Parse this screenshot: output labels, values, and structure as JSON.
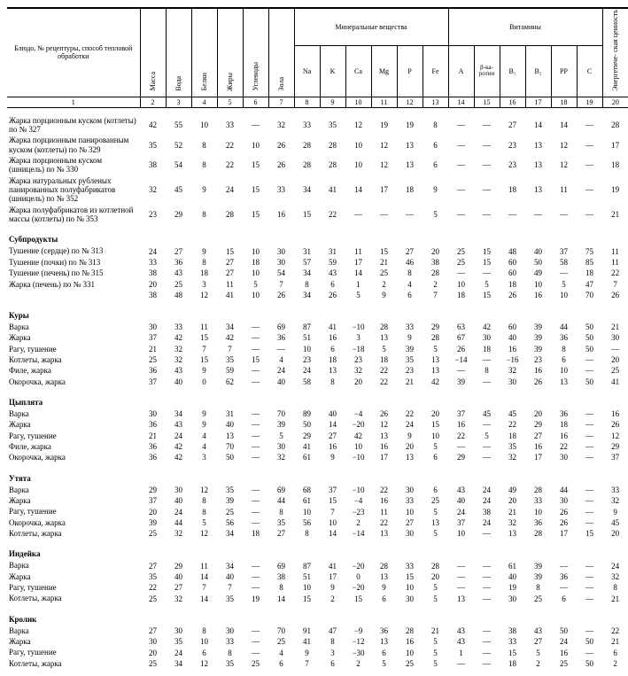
{
  "header": {
    "name_col": "Блюдо, № рецептуры,\nспособ тепловой обработки",
    "vertical": [
      "Масса",
      "Вода",
      "Белки",
      "Жиры",
      "Углеводы",
      "Зола"
    ],
    "groups": {
      "minerals": "Минеральные вещества",
      "vitamins": "Витамины",
      "energy": "Энергетиче-\nская ценность"
    },
    "mineral_cols": [
      "Na",
      "K",
      "Ca",
      "Mg",
      "P",
      "Fe"
    ],
    "vitamin_cols": [
      "A",
      "β-ка-\nротин",
      "B₁",
      "B₂",
      "PP",
      "C"
    ],
    "colnums": [
      "1",
      "2",
      "3",
      "4",
      "5",
      "6",
      "7",
      "8",
      "9",
      "10",
      "11",
      "12",
      "13",
      "14",
      "15",
      "16",
      "17",
      "18",
      "19",
      "20"
    ]
  },
  "top_rows": [
    {
      "name": "Жарка порционным куском (котлеты) по № 327",
      "v": [
        "42",
        "55",
        "10",
        "33",
        "—",
        "32",
        "33",
        "35",
        "12",
        "19",
        "19",
        "8",
        "—",
        "—",
        "27",
        "14",
        "14",
        "—",
        "28"
      ]
    },
    {
      "name": "Жарка порционным панированным куском (котлеты) по № 329",
      "v": [
        "35",
        "52",
        "8",
        "22",
        "10",
        "26",
        "28",
        "28",
        "10",
        "12",
        "13",
        "6",
        "—",
        "—",
        "23",
        "13",
        "12",
        "—",
        "17"
      ]
    },
    {
      "name": "Жарка порционным куском (шницель) по № 330",
      "v": [
        "38",
        "54",
        "8",
        "22",
        "15",
        "26",
        "28",
        "28",
        "10",
        "12",
        "13",
        "6",
        "—",
        "—",
        "23",
        "13",
        "12",
        "—",
        "18"
      ]
    },
    {
      "name": "Жарка натуральных рубленых панированных полуфабрикатов (шницель) по № 352",
      "v": [
        "32",
        "45",
        "9",
        "24",
        "15",
        "33",
        "34",
        "41",
        "14",
        "17",
        "18",
        "9",
        "—",
        "—",
        "18",
        "13",
        "11",
        "—",
        "19"
      ]
    },
    {
      "name": "Жарка полуфабрикатов из котлетной массы (котлеты) по № 353",
      "v": [
        "23",
        "29",
        "8",
        "28",
        "15",
        "16",
        "15",
        "22",
        "—",
        "—",
        "—",
        "5",
        "—",
        "—",
        "—",
        "—",
        "—",
        "—",
        "21"
      ]
    }
  ],
  "sections": [
    {
      "title": "Субпродукты",
      "rows": [
        {
          "name": "Тушение (сердце) по № 313",
          "v": [
            "24",
            "27",
            "9",
            "15",
            "10",
            "30",
            "31",
            "31",
            "11",
            "15",
            "27",
            "20",
            "25",
            "15",
            "48",
            "40",
            "37",
            "75",
            "11"
          ]
        },
        {
          "name": "Тушение (почки) по № 313",
          "v": [
            "33",
            "36",
            "8",
            "27",
            "18",
            "30",
            "57",
            "59",
            "17",
            "21",
            "46",
            "38",
            "25",
            "15",
            "60",
            "50",
            "58",
            "85",
            "11"
          ]
        },
        {
          "name": "Тушение (печень) по № 315",
          "v": [
            "38",
            "43",
            "18",
            "27",
            "10",
            "54",
            "34",
            "43",
            "14",
            "25",
            "8",
            "28",
            "—",
            "—",
            "60",
            "49",
            "—",
            "18",
            "22"
          ]
        },
        {
          "name": "Жарка (печень) по № 331",
          "v": [
            "20",
            "25",
            "3",
            "11",
            "5",
            "7",
            "8",
            "6",
            "1",
            "2",
            "4",
            "2",
            "10",
            "5",
            "18",
            "10",
            "5",
            "47",
            "7"
          ]
        },
        {
          "name": "",
          "v": [
            "38",
            "48",
            "12",
            "41",
            "10",
            "26",
            "34",
            "26",
            "5",
            "9",
            "6",
            "7",
            "18",
            "15",
            "26",
            "16",
            "10",
            "70",
            "26"
          ]
        }
      ]
    },
    {
      "title": "Куры",
      "rows": [
        {
          "name": "Варка",
          "v": [
            "30",
            "33",
            "11",
            "34",
            "—",
            "69",
            "87",
            "41",
            "−10",
            "28",
            "33",
            "29",
            "63",
            "42",
            "60",
            "39",
            "44",
            "50",
            "21"
          ]
        },
        {
          "name": "Жарка",
          "v": [
            "37",
            "42",
            "15",
            "42",
            "—",
            "36",
            "51",
            "16",
            "3",
            "13",
            "9",
            "28",
            "67",
            "30",
            "40",
            "39",
            "36",
            "50",
            "30"
          ]
        },
        {
          "name": "Рагу, тушение",
          "v": [
            "21",
            "32",
            "7",
            "7",
            "—",
            "—",
            "10",
            "6",
            "−18",
            "5",
            "39",
            "5",
            "26",
            "18",
            "16",
            "39",
            "8",
            "50",
            "—"
          ]
        },
        {
          "name": "Котлеты, жарка",
          "v": [
            "25",
            "32",
            "15",
            "35",
            "15",
            "4",
            "23",
            "18",
            "23",
            "18",
            "35",
            "13",
            "−14",
            "—",
            "−16",
            "23",
            "6",
            "—",
            "20"
          ]
        },
        {
          "name": "Филе, жарка",
          "v": [
            "36",
            "43",
            "9",
            "59",
            "—",
            "24",
            "24",
            "13",
            "32",
            "22",
            "23",
            "13",
            "—",
            "8",
            "32",
            "16",
            "10",
            "—",
            "25"
          ]
        },
        {
          "name": "Окорочка, жарка",
          "v": [
            "37",
            "40",
            "0",
            "62",
            "—",
            "40",
            "58",
            "8",
            "20",
            "22",
            "21",
            "42",
            "39",
            "—",
            "30",
            "26",
            "13",
            "50",
            "41"
          ]
        }
      ]
    },
    {
      "title": "Цыплята",
      "rows": [
        {
          "name": "Варка",
          "v": [
            "30",
            "34",
            "9",
            "31",
            "—",
            "70",
            "89",
            "40",
            "−4",
            "26",
            "22",
            "20",
            "37",
            "45",
            "45",
            "20",
            "36",
            "—",
            "16"
          ]
        },
        {
          "name": "Жарка",
          "v": [
            "36",
            "43",
            "9",
            "40",
            "—",
            "39",
            "50",
            "14",
            "−20",
            "12",
            "24",
            "15",
            "16",
            "—",
            "22",
            "29",
            "18",
            "—",
            "26"
          ]
        },
        {
          "name": "Рагу, тушение",
          "v": [
            "21",
            "24",
            "4",
            "13",
            "—",
            "5",
            "29",
            "27",
            "42",
            "13",
            "9",
            "10",
            "22",
            "5",
            "18",
            "27",
            "16",
            "—",
            "12"
          ]
        },
        {
          "name": "Филе, жарка",
          "v": [
            "36",
            "42",
            "4",
            "70",
            "—",
            "30",
            "41",
            "16",
            "10",
            "16",
            "20",
            "5",
            "—",
            "—",
            "35",
            "16",
            "22",
            "—",
            "29"
          ]
        },
        {
          "name": "Окорочка, жарка",
          "v": [
            "36",
            "42",
            "3",
            "50",
            "—",
            "32",
            "61",
            "9",
            "−10",
            "17",
            "13",
            "6",
            "29",
            "—",
            "32",
            "17",
            "30",
            "—",
            "37"
          ]
        }
      ]
    },
    {
      "title": "Утята",
      "rows": [
        {
          "name": "Варка",
          "v": [
            "29",
            "30",
            "12",
            "35",
            "—",
            "69",
            "68",
            "37",
            "−10",
            "22",
            "30",
            "6",
            "43",
            "24",
            "49",
            "28",
            "44",
            "—",
            "33"
          ]
        },
        {
          "name": "Жарка",
          "v": [
            "37",
            "40",
            "8",
            "39",
            "—",
            "44",
            "61",
            "15",
            "−4",
            "16",
            "33",
            "25",
            "40",
            "24",
            "20",
            "33",
            "30",
            "—",
            "32"
          ]
        },
        {
          "name": "Рагу, тушение",
          "v": [
            "20",
            "24",
            "8",
            "25",
            "—",
            "8",
            "10",
            "7",
            "−23",
            "11",
            "10",
            "5",
            "24",
            "38",
            "21",
            "10",
            "26",
            "—",
            "9"
          ]
        },
        {
          "name": "Окорочка, жарка",
          "v": [
            "39",
            "44",
            "5",
            "56",
            "—",
            "35",
            "56",
            "10",
            "2",
            "22",
            "27",
            "13",
            "37",
            "24",
            "32",
            "36",
            "26",
            "—",
            "45"
          ]
        },
        {
          "name": "Котлеты, жарка",
          "v": [
            "25",
            "32",
            "12",
            "34",
            "18",
            "27",
            "8",
            "14",
            "−14",
            "13",
            "30",
            "5",
            "10",
            "—",
            "13",
            "28",
            "17",
            "15",
            "20"
          ]
        }
      ]
    },
    {
      "title": "Индейка",
      "rows": [
        {
          "name": "Варка",
          "v": [
            "27",
            "29",
            "11",
            "34",
            "—",
            "69",
            "87",
            "41",
            "−20",
            "28",
            "33",
            "28",
            "—",
            "—",
            "61",
            "39",
            "—",
            "—",
            "24"
          ]
        },
        {
          "name": "Жарка",
          "v": [
            "35",
            "40",
            "14",
            "40",
            "—",
            "38",
            "51",
            "17",
            "0",
            "13",
            "15",
            "20",
            "—",
            "—",
            "40",
            "39",
            "36",
            "—",
            "32"
          ]
        },
        {
          "name": "Рагу, тушение",
          "v": [
            "22",
            "27",
            "7",
            "7",
            "—",
            "8",
            "10",
            "9",
            "−20",
            "9",
            "10",
            "5",
            "—",
            "—",
            "19",
            "8",
            "—",
            "—",
            "8"
          ]
        },
        {
          "name": "Котлеты, жарка",
          "v": [
            "25",
            "32",
            "14",
            "35",
            "19",
            "14",
            "15",
            "2",
            "15",
            "6",
            "30",
            "5",
            "13",
            "—",
            "30",
            "25",
            "6",
            "—",
            "21"
          ]
        }
      ]
    },
    {
      "title": "Кролик",
      "rows": [
        {
          "name": "Варка",
          "v": [
            "27",
            "30",
            "8",
            "30",
            "—",
            "70",
            "91",
            "47",
            "−9",
            "36",
            "28",
            "21",
            "43",
            "—",
            "38",
            "43",
            "50",
            "—",
            "22"
          ]
        },
        {
          "name": "Жарка",
          "v": [
            "30",
            "35",
            "10",
            "33",
            "—",
            "25",
            "41",
            "8",
            "−12",
            "13",
            "16",
            "5",
            "43",
            "—",
            "33",
            "27",
            "24",
            "50",
            "21"
          ]
        },
        {
          "name": "Рагу, тушение",
          "v": [
            "20",
            "24",
            "6",
            "8",
            "—",
            "4",
            "9",
            "3",
            "−30",
            "6",
            "10",
            "5",
            "1",
            "—",
            "15",
            "5",
            "16",
            "—",
            "6"
          ]
        },
        {
          "name": "Котлеты, жарка",
          "v": [
            "25",
            "34",
            "12",
            "35",
            "25",
            "6",
            "7",
            "6",
            "2",
            "5",
            "25",
            "5",
            "—",
            "—",
            "18",
            "2",
            "25",
            "50",
            "2"
          ]
        }
      ]
    }
  ]
}
